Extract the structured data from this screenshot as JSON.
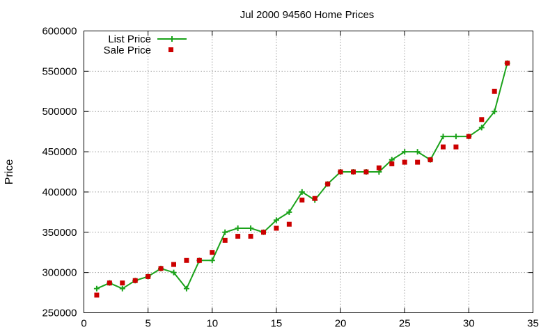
{
  "chart_data": {
    "type": "line",
    "title": "Jul 2000 94560 Home Prices",
    "xlabel": "",
    "ylabel": "Price",
    "xlim": [
      0,
      35
    ],
    "ylim": [
      250000,
      600000
    ],
    "x_ticks": [
      0,
      5,
      10,
      15,
      20,
      25,
      30,
      35
    ],
    "y_ticks": [
      250000,
      300000,
      350000,
      400000,
      450000,
      500000,
      550000,
      600000
    ],
    "grid": true,
    "legend_position": "top-left",
    "series": [
      {
        "name": "List Price",
        "style": "line-with-plus-markers",
        "color": "#1aa21a",
        "points": [
          [
            1,
            280000
          ],
          [
            2,
            287000
          ],
          [
            3,
            280000
          ],
          [
            4,
            290000
          ],
          [
            5,
            295000
          ],
          [
            6,
            305000
          ],
          [
            7,
            300000
          ],
          [
            8,
            280000
          ],
          [
            9,
            315000
          ],
          [
            10,
            315000
          ],
          [
            11,
            350000
          ],
          [
            12,
            355000
          ],
          [
            13,
            355000
          ],
          [
            14,
            350000
          ],
          [
            15,
            365000
          ],
          [
            16,
            375000
          ],
          [
            17,
            400000
          ],
          [
            18,
            390000
          ],
          [
            19,
            410000
          ],
          [
            20,
            425000
          ],
          [
            21,
            425000
          ],
          [
            22,
            425000
          ],
          [
            23,
            425000
          ],
          [
            24,
            440000
          ],
          [
            25,
            450000
          ],
          [
            26,
            450000
          ],
          [
            27,
            440000
          ],
          [
            28,
            469000
          ],
          [
            29,
            469000
          ],
          [
            30,
            469000
          ],
          [
            31,
            480000
          ],
          [
            32,
            500000
          ],
          [
            33,
            560000
          ]
        ]
      },
      {
        "name": "Sale Price",
        "style": "square-markers",
        "color": "#cc0000",
        "points": [
          [
            1,
            272000
          ],
          [
            2,
            287000
          ],
          [
            3,
            287000
          ],
          [
            4,
            290000
          ],
          [
            5,
            295000
          ],
          [
            6,
            305000
          ],
          [
            7,
            310000
          ],
          [
            8,
            315000
          ],
          [
            9,
            315000
          ],
          [
            10,
            325000
          ],
          [
            11,
            340000
          ],
          [
            12,
            345000
          ],
          [
            13,
            345000
          ],
          [
            14,
            350000
          ],
          [
            15,
            355000
          ],
          [
            16,
            360000
          ],
          [
            17,
            390000
          ],
          [
            18,
            392000
          ],
          [
            19,
            410000
          ],
          [
            20,
            425000
          ],
          [
            21,
            425000
          ],
          [
            22,
            425000
          ],
          [
            23,
            430000
          ],
          [
            24,
            435000
          ],
          [
            25,
            437000
          ],
          [
            26,
            437000
          ],
          [
            27,
            440000
          ],
          [
            28,
            456000
          ],
          [
            29,
            456000
          ],
          [
            30,
            469000
          ],
          [
            31,
            490000
          ],
          [
            32,
            525000
          ],
          [
            33,
            560000
          ]
        ]
      }
    ]
  }
}
